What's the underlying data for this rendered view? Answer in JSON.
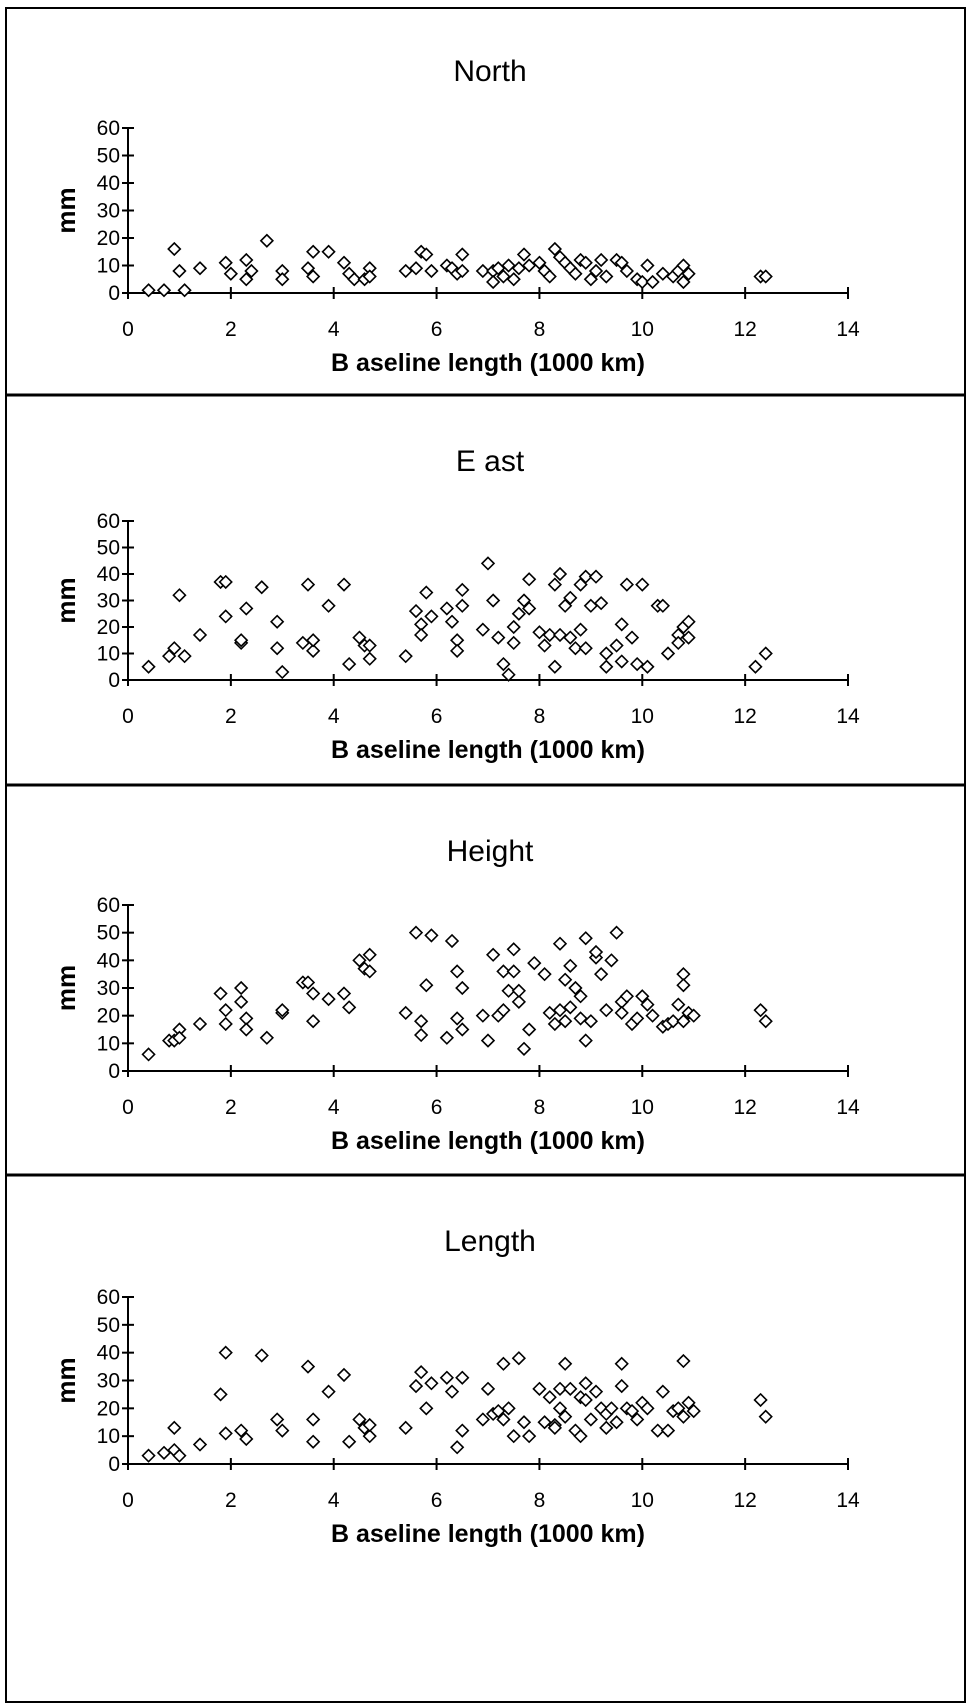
{
  "chart_data": [
    {
      "type": "scatter",
      "title": "North",
      "xlabel": "B aseline length (1000 km)",
      "ylabel": "mm",
      "xlim": [
        0,
        14
      ],
      "ylim": [
        0,
        60
      ],
      "xticks": [
        "0",
        "2",
        "4",
        "6",
        "8",
        "10",
        "12",
        "14"
      ],
      "yticks": [
        "0",
        "10",
        "20",
        "30",
        "40",
        "50",
        "60"
      ],
      "grid": false,
      "marker": "diamond",
      "points": [
        [
          0.4,
          1
        ],
        [
          0.7,
          1
        ],
        [
          0.9,
          16
        ],
        [
          1.0,
          8
        ],
        [
          1.1,
          1
        ],
        [
          1.4,
          9
        ],
        [
          1.9,
          11
        ],
        [
          2.0,
          7
        ],
        [
          2.3,
          12
        ],
        [
          2.3,
          5
        ],
        [
          2.4,
          8
        ],
        [
          2.7,
          19
        ],
        [
          3.0,
          8
        ],
        [
          3.0,
          5
        ],
        [
          3.5,
          9
        ],
        [
          3.6,
          6
        ],
        [
          3.6,
          15
        ],
        [
          3.9,
          15
        ],
        [
          4.2,
          11
        ],
        [
          4.3,
          7
        ],
        [
          4.4,
          5
        ],
        [
          4.6,
          5
        ],
        [
          4.7,
          9
        ],
        [
          4.7,
          6
        ],
        [
          5.4,
          8
        ],
        [
          5.6,
          9
        ],
        [
          5.7,
          15
        ],
        [
          5.8,
          14
        ],
        [
          5.9,
          8
        ],
        [
          6.2,
          10
        ],
        [
          6.3,
          9
        ],
        [
          6.4,
          7
        ],
        [
          6.5,
          14
        ],
        [
          6.5,
          8
        ],
        [
          6.9,
          8
        ],
        [
          7.1,
          8
        ],
        [
          7.1,
          4
        ],
        [
          7.2,
          9
        ],
        [
          7.3,
          6
        ],
        [
          7.4,
          10
        ],
        [
          7.5,
          5
        ],
        [
          7.6,
          9
        ],
        [
          7.7,
          14
        ],
        [
          7.8,
          10
        ],
        [
          8.0,
          11
        ],
        [
          8.1,
          8
        ],
        [
          8.2,
          6
        ],
        [
          8.3,
          16
        ],
        [
          8.4,
          13
        ],
        [
          8.5,
          11
        ],
        [
          8.6,
          9
        ],
        [
          8.7,
          7
        ],
        [
          8.8,
          12
        ],
        [
          8.9,
          11
        ],
        [
          9.0,
          5
        ],
        [
          9.1,
          8
        ],
        [
          9.2,
          12
        ],
        [
          9.3,
          6
        ],
        [
          9.5,
          12
        ],
        [
          9.6,
          11
        ],
        [
          9.7,
          8
        ],
        [
          9.9,
          5
        ],
        [
          10.0,
          4
        ],
        [
          10.1,
          10
        ],
        [
          10.2,
          4
        ],
        [
          10.4,
          7
        ],
        [
          10.6,
          6
        ],
        [
          10.7,
          8
        ],
        [
          10.8,
          4
        ],
        [
          10.8,
          10
        ],
        [
          10.9,
          7
        ],
        [
          12.3,
          6
        ],
        [
          12.4,
          6
        ]
      ]
    },
    {
      "type": "scatter",
      "title": "E ast",
      "xlabel": "B aseline length (1000 km)",
      "ylabel": "mm",
      "xlim": [
        0,
        14
      ],
      "ylim": [
        0,
        60
      ],
      "xticks": [
        "0",
        "2",
        "4",
        "6",
        "8",
        "10",
        "12",
        "14"
      ],
      "yticks": [
        "0",
        "10",
        "20",
        "30",
        "40",
        "50",
        "60"
      ],
      "grid": false,
      "marker": "diamond",
      "points": [
        [
          0.4,
          5
        ],
        [
          0.8,
          9
        ],
        [
          0.9,
          12
        ],
        [
          1.0,
          32
        ],
        [
          1.1,
          9
        ],
        [
          1.4,
          17
        ],
        [
          1.8,
          37
        ],
        [
          1.9,
          37
        ],
        [
          1.9,
          24
        ],
        [
          2.2,
          14
        ],
        [
          2.2,
          15
        ],
        [
          2.3,
          27
        ],
        [
          2.6,
          35
        ],
        [
          2.9,
          12
        ],
        [
          2.9,
          22
        ],
        [
          3.0,
          3
        ],
        [
          3.4,
          14
        ],
        [
          3.5,
          36
        ],
        [
          3.6,
          11
        ],
        [
          3.6,
          15
        ],
        [
          3.9,
          28
        ],
        [
          4.2,
          36
        ],
        [
          4.3,
          6
        ],
        [
          4.5,
          16
        ],
        [
          4.6,
          13
        ],
        [
          4.7,
          8
        ],
        [
          4.7,
          13
        ],
        [
          5.4,
          9
        ],
        [
          5.6,
          26
        ],
        [
          5.7,
          21
        ],
        [
          5.7,
          17
        ],
        [
          5.8,
          33
        ],
        [
          5.9,
          24
        ],
        [
          6.2,
          27
        ],
        [
          6.3,
          22
        ],
        [
          6.4,
          15
        ],
        [
          6.4,
          11
        ],
        [
          6.5,
          34
        ],
        [
          6.5,
          28
        ],
        [
          6.9,
          19
        ],
        [
          7.0,
          44
        ],
        [
          7.1,
          30
        ],
        [
          7.2,
          16
        ],
        [
          7.3,
          6
        ],
        [
          7.4,
          2
        ],
        [
          7.5,
          20
        ],
        [
          7.5,
          14
        ],
        [
          7.6,
          25
        ],
        [
          7.7,
          30
        ],
        [
          7.8,
          38
        ],
        [
          7.8,
          27
        ],
        [
          8.0,
          18
        ],
        [
          8.1,
          13
        ],
        [
          8.2,
          17
        ],
        [
          8.3,
          5
        ],
        [
          8.3,
          36
        ],
        [
          8.4,
          40
        ],
        [
          8.4,
          17
        ],
        [
          8.5,
          28
        ],
        [
          8.6,
          31
        ],
        [
          8.6,
          16
        ],
        [
          8.7,
          12
        ],
        [
          8.8,
          36
        ],
        [
          8.8,
          19
        ],
        [
          8.9,
          39
        ],
        [
          8.9,
          12
        ],
        [
          9.0,
          28
        ],
        [
          9.1,
          39
        ],
        [
          9.2,
          29
        ],
        [
          9.3,
          5
        ],
        [
          9.3,
          10
        ],
        [
          9.5,
          13
        ],
        [
          9.6,
          21
        ],
        [
          9.6,
          7
        ],
        [
          9.7,
          36
        ],
        [
          9.8,
          16
        ],
        [
          9.9,
          6
        ],
        [
          10.0,
          36
        ],
        [
          10.1,
          5
        ],
        [
          10.3,
          28
        ],
        [
          10.4,
          28
        ],
        [
          10.5,
          10
        ],
        [
          10.7,
          17
        ],
        [
          10.7,
          14
        ],
        [
          10.8,
          20
        ],
        [
          10.9,
          22
        ],
        [
          10.9,
          16
        ],
        [
          12.2,
          5
        ],
        [
          12.4,
          10
        ]
      ]
    },
    {
      "type": "scatter",
      "title": "Height",
      "xlabel": "B aseline length (1000 km)",
      "ylabel": "mm",
      "xlim": [
        0,
        14
      ],
      "ylim": [
        0,
        60
      ],
      "xticks": [
        "0",
        "2",
        "4",
        "6",
        "8",
        "10",
        "12",
        "14"
      ],
      "yticks": [
        "0",
        "10",
        "20",
        "30",
        "40",
        "50",
        "60"
      ],
      "grid": false,
      "marker": "diamond",
      "points": [
        [
          0.4,
          6
        ],
        [
          0.8,
          11
        ],
        [
          0.9,
          11
        ],
        [
          1.0,
          15
        ],
        [
          1.0,
          12
        ],
        [
          1.4,
          17
        ],
        [
          1.8,
          28
        ],
        [
          1.9,
          22
        ],
        [
          1.9,
          17
        ],
        [
          2.2,
          30
        ],
        [
          2.2,
          25
        ],
        [
          2.3,
          19
        ],
        [
          2.3,
          15
        ],
        [
          2.7,
          12
        ],
        [
          3.0,
          21
        ],
        [
          3.0,
          22
        ],
        [
          3.4,
          32
        ],
        [
          3.5,
          32
        ],
        [
          3.6,
          28
        ],
        [
          3.6,
          18
        ],
        [
          3.9,
          26
        ],
        [
          4.2,
          28
        ],
        [
          4.3,
          23
        ],
        [
          4.5,
          40
        ],
        [
          4.6,
          37
        ],
        [
          4.7,
          36
        ],
        [
          4.7,
          42
        ],
        [
          5.4,
          21
        ],
        [
          5.6,
          50
        ],
        [
          5.7,
          13
        ],
        [
          5.7,
          18
        ],
        [
          5.8,
          31
        ],
        [
          5.9,
          49
        ],
        [
          6.2,
          12
        ],
        [
          6.3,
          47
        ],
        [
          6.4,
          36
        ],
        [
          6.4,
          19
        ],
        [
          6.5,
          30
        ],
        [
          6.5,
          15
        ],
        [
          6.9,
          20
        ],
        [
          7.0,
          11
        ],
        [
          7.1,
          42
        ],
        [
          7.2,
          20
        ],
        [
          7.3,
          36
        ],
        [
          7.3,
          22
        ],
        [
          7.4,
          29
        ],
        [
          7.5,
          44
        ],
        [
          7.5,
          36
        ],
        [
          7.6,
          25
        ],
        [
          7.6,
          29
        ],
        [
          7.7,
          8
        ],
        [
          7.8,
          15
        ],
        [
          7.9,
          39
        ],
        [
          8.1,
          35
        ],
        [
          8.2,
          21
        ],
        [
          8.3,
          17
        ],
        [
          8.4,
          22
        ],
        [
          8.4,
          46
        ],
        [
          8.5,
          33
        ],
        [
          8.5,
          18
        ],
        [
          8.6,
          38
        ],
        [
          8.6,
          23
        ],
        [
          8.7,
          30
        ],
        [
          8.8,
          19
        ],
        [
          8.8,
          27
        ],
        [
          8.9,
          48
        ],
        [
          8.9,
          11
        ],
        [
          9.0,
          18
        ],
        [
          9.1,
          41
        ],
        [
          9.1,
          43
        ],
        [
          9.2,
          35
        ],
        [
          9.3,
          22
        ],
        [
          9.4,
          40
        ],
        [
          9.5,
          50
        ],
        [
          9.6,
          25
        ],
        [
          9.6,
          21
        ],
        [
          9.7,
          27
        ],
        [
          9.8,
          17
        ],
        [
          9.9,
          19
        ],
        [
          10.0,
          27
        ],
        [
          10.1,
          24
        ],
        [
          10.2,
          20
        ],
        [
          10.4,
          16
        ],
        [
          10.5,
          17
        ],
        [
          10.6,
          18
        ],
        [
          10.7,
          24
        ],
        [
          10.8,
          35
        ],
        [
          10.8,
          31
        ],
        [
          10.8,
          18
        ],
        [
          10.9,
          21
        ],
        [
          11.0,
          20
        ],
        [
          12.3,
          22
        ],
        [
          12.4,
          18
        ]
      ]
    },
    {
      "type": "scatter",
      "title": "Length",
      "xlabel": "B aseline length (1000 km)",
      "ylabel": "mm",
      "xlim": [
        0,
        14
      ],
      "ylim": [
        0,
        60
      ],
      "xticks": [
        "0",
        "2",
        "4",
        "6",
        "8",
        "10",
        "12",
        "14"
      ],
      "yticks": [
        "0",
        "10",
        "20",
        "30",
        "40",
        "50",
        "60"
      ],
      "grid": false,
      "marker": "diamond",
      "points": [
        [
          0.4,
          3
        ],
        [
          0.7,
          4
        ],
        [
          0.9,
          13
        ],
        [
          0.9,
          5
        ],
        [
          1.0,
          3
        ],
        [
          1.4,
          7
        ],
        [
          1.8,
          25
        ],
        [
          1.9,
          11
        ],
        [
          1.9,
          40
        ],
        [
          2.2,
          12
        ],
        [
          2.3,
          9
        ],
        [
          2.6,
          39
        ],
        [
          2.9,
          16
        ],
        [
          3.0,
          12
        ],
        [
          3.5,
          35
        ],
        [
          3.6,
          16
        ],
        [
          3.6,
          8
        ],
        [
          3.9,
          26
        ],
        [
          4.2,
          32
        ],
        [
          4.3,
          8
        ],
        [
          4.5,
          16
        ],
        [
          4.6,
          13
        ],
        [
          4.7,
          10
        ],
        [
          4.7,
          14
        ],
        [
          5.4,
          13
        ],
        [
          5.6,
          28
        ],
        [
          5.7,
          33
        ],
        [
          5.8,
          20
        ],
        [
          5.9,
          29
        ],
        [
          6.2,
          31
        ],
        [
          6.3,
          26
        ],
        [
          6.4,
          6
        ],
        [
          6.5,
          12
        ],
        [
          6.5,
          31
        ],
        [
          6.9,
          16
        ],
        [
          7.0,
          27
        ],
        [
          7.1,
          18
        ],
        [
          7.2,
          19
        ],
        [
          7.3,
          36
        ],
        [
          7.3,
          16
        ],
        [
          7.4,
          20
        ],
        [
          7.5,
          10
        ],
        [
          7.6,
          38
        ],
        [
          7.7,
          15
        ],
        [
          7.8,
          10
        ],
        [
          8.0,
          27
        ],
        [
          8.1,
          15
        ],
        [
          8.2,
          24
        ],
        [
          8.3,
          14
        ],
        [
          8.3,
          13
        ],
        [
          8.4,
          20
        ],
        [
          8.4,
          27
        ],
        [
          8.5,
          36
        ],
        [
          8.5,
          17
        ],
        [
          8.6,
          27
        ],
        [
          8.7,
          12
        ],
        [
          8.8,
          24
        ],
        [
          8.8,
          10
        ],
        [
          8.9,
          29
        ],
        [
          8.9,
          23
        ],
        [
          9.0,
          16
        ],
        [
          9.1,
          26
        ],
        [
          9.2,
          20
        ],
        [
          9.3,
          18
        ],
        [
          9.3,
          13
        ],
        [
          9.4,
          20
        ],
        [
          9.5,
          15
        ],
        [
          9.6,
          36
        ],
        [
          9.6,
          28
        ],
        [
          9.7,
          20
        ],
        [
          9.8,
          19
        ],
        [
          9.9,
          16
        ],
        [
          10.0,
          22
        ],
        [
          10.1,
          20
        ],
        [
          10.3,
          12
        ],
        [
          10.4,
          26
        ],
        [
          10.5,
          12
        ],
        [
          10.6,
          19
        ],
        [
          10.7,
          20
        ],
        [
          10.8,
          17
        ],
        [
          10.8,
          37
        ],
        [
          10.9,
          22
        ],
        [
          11.0,
          19
        ],
        [
          12.3,
          23
        ],
        [
          12.4,
          17
        ]
      ]
    }
  ]
}
